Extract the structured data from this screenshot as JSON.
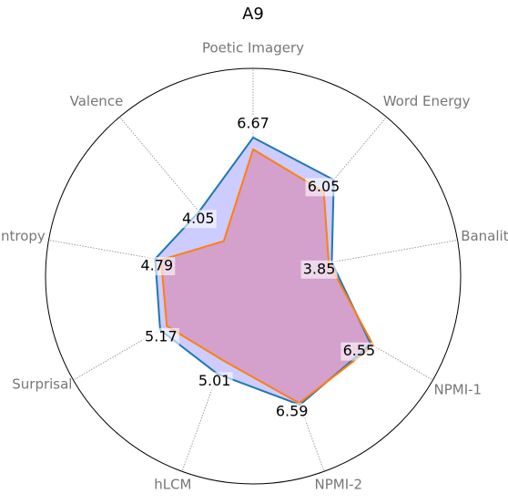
{
  "chart_data": {
    "type": "radar",
    "title": "A9",
    "categories": [
      "Poetic Imagery",
      "Word Energy",
      "Banality",
      "NPMI-1",
      "NPMI-2",
      "hLCM",
      "Surprisal",
      "Entropy",
      "Valence"
    ],
    "series": [
      {
        "color": "#1f77b4",
        "fill": "#ccccff",
        "values": [
          6.67,
          6.05,
          3.85,
          6.55,
          6.59,
          5.01,
          5.17,
          4.79,
          4.05
        ]
      },
      {
        "color": "#ff7f0e",
        "fill": "#d4a0cc",
        "values": [
          6.1,
          5.3,
          3.7,
          6.7,
          6.5,
          4.3,
          4.8,
          4.5,
          2.2
        ]
      }
    ],
    "rlim": [
      0,
      10
    ],
    "grid": true
  }
}
